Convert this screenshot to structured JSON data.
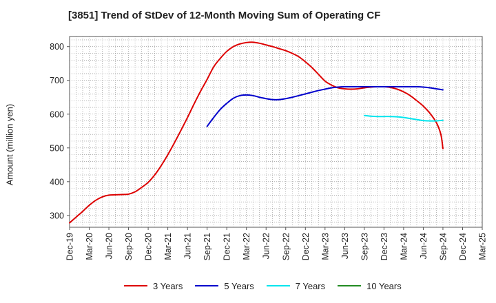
{
  "chart_data": {
    "type": "line",
    "title": "[3851]  Trend of StDev of 12-Month Moving Sum of Operating CF",
    "xlabel": "",
    "ylabel": "Amount (million yen)",
    "ylim": [
      265,
      830
    ],
    "yticks": [
      300,
      400,
      500,
      600,
      700,
      800
    ],
    "x_ticks": [
      "Dec-19",
      "Mar-20",
      "Jun-20",
      "Sep-20",
      "Dec-20",
      "Mar-21",
      "Jun-21",
      "Sep-21",
      "Dec-21",
      "Mar-22",
      "Jun-22",
      "Sep-22",
      "Dec-22",
      "Mar-23",
      "Jun-23",
      "Sep-23",
      "Dec-23",
      "Mar-24",
      "Jun-24",
      "Sep-24",
      "Dec-24",
      "Mar-25"
    ],
    "grid": true,
    "legend_position": "bottom",
    "series": [
      {
        "name": "3 Years",
        "color": "#dd0000",
        "points": [
          [
            "Dec-19",
            278
          ],
          [
            "Jan-20",
            295
          ],
          [
            "Feb-20",
            312
          ],
          [
            "Mar-20",
            330
          ],
          [
            "Apr-20",
            345
          ],
          [
            "May-20",
            355
          ],
          [
            "Jun-20",
            360
          ],
          [
            "Jul-20",
            361
          ],
          [
            "Aug-20",
            362
          ],
          [
            "Sep-20",
            363
          ],
          [
            "Oct-20",
            370
          ],
          [
            "Nov-20",
            383
          ],
          [
            "Dec-20",
            398
          ],
          [
            "Jan-21",
            420
          ],
          [
            "Feb-21",
            448
          ],
          [
            "Mar-21",
            480
          ],
          [
            "Apr-21",
            515
          ],
          [
            "May-21",
            552
          ],
          [
            "Jun-21",
            590
          ],
          [
            "Jul-21",
            630
          ],
          [
            "Aug-21",
            668
          ],
          [
            "Sep-21",
            703
          ],
          [
            "Oct-21",
            740
          ],
          [
            "Nov-21",
            765
          ],
          [
            "Dec-21",
            786
          ],
          [
            "Jan-22",
            800
          ],
          [
            "Feb-22",
            808
          ],
          [
            "Mar-22",
            812
          ],
          [
            "Apr-22",
            813
          ],
          [
            "May-22",
            810
          ],
          [
            "Jun-22",
            805
          ],
          [
            "Jul-22",
            800
          ],
          [
            "Aug-22",
            794
          ],
          [
            "Sep-22",
            788
          ],
          [
            "Oct-22",
            780
          ],
          [
            "Nov-22",
            770
          ],
          [
            "Dec-22",
            755
          ],
          [
            "Jan-23",
            738
          ],
          [
            "Feb-23",
            718
          ],
          [
            "Mar-23",
            698
          ],
          [
            "Apr-23",
            686
          ],
          [
            "May-23",
            678
          ],
          [
            "Jun-23",
            675
          ],
          [
            "Jul-23",
            674
          ],
          [
            "Aug-23",
            675
          ],
          [
            "Sep-23",
            678
          ],
          [
            "Oct-23",
            680
          ],
          [
            "Nov-23",
            681
          ],
          [
            "Dec-23",
            681
          ],
          [
            "Jan-24",
            679
          ],
          [
            "Feb-24",
            674
          ],
          [
            "Mar-24",
            666
          ],
          [
            "Apr-24",
            655
          ],
          [
            "May-24",
            640
          ],
          [
            "Jun-24",
            624
          ],
          [
            "Jul-24",
            603
          ],
          [
            "Aug-24",
            575
          ],
          [
            "Sep-24",
            540
          ],
          [
            "Sep-24",
            498
          ]
        ]
      },
      {
        "name": "5 Years",
        "color": "#0000cc",
        "points": [
          [
            "Sep-21",
            564
          ],
          [
            "Oct-21",
            590
          ],
          [
            "Nov-21",
            614
          ],
          [
            "Dec-21",
            632
          ],
          [
            "Jan-22",
            647
          ],
          [
            "Feb-22",
            655
          ],
          [
            "Mar-22",
            657
          ],
          [
            "Apr-22",
            655
          ],
          [
            "May-22",
            650
          ],
          [
            "Jun-22",
            646
          ],
          [
            "Jul-22",
            643
          ],
          [
            "Aug-22",
            643
          ],
          [
            "Sep-22",
            646
          ],
          [
            "Oct-22",
            650
          ],
          [
            "Nov-22",
            655
          ],
          [
            "Dec-22",
            660
          ],
          [
            "Jan-23",
            665
          ],
          [
            "Feb-23",
            670
          ],
          [
            "Mar-23",
            674
          ],
          [
            "Apr-23",
            678
          ],
          [
            "May-23",
            680
          ],
          [
            "Jun-23",
            681
          ],
          [
            "Jul-23",
            681
          ],
          [
            "Aug-23",
            681
          ],
          [
            "Sep-23",
            681
          ],
          [
            "Oct-23",
            681
          ],
          [
            "Nov-23",
            681
          ],
          [
            "Dec-23",
            681
          ],
          [
            "Jan-24",
            681
          ],
          [
            "Feb-24",
            681
          ],
          [
            "Mar-24",
            681
          ],
          [
            "Apr-24",
            681
          ],
          [
            "May-24",
            681
          ],
          [
            "Jun-24",
            680
          ],
          [
            "Jul-24",
            678
          ],
          [
            "Aug-24",
            675
          ],
          [
            "Sep-24",
            672
          ]
        ]
      },
      {
        "name": "7 Years",
        "color": "#00e5ee",
        "points": [
          [
            "Sep-23",
            596
          ],
          [
            "Oct-23",
            594
          ],
          [
            "Nov-23",
            593
          ],
          [
            "Dec-23",
            593
          ],
          [
            "Jan-24",
            593
          ],
          [
            "Feb-24",
            592
          ],
          [
            "Mar-24",
            590
          ],
          [
            "Apr-24",
            587
          ],
          [
            "May-24",
            584
          ],
          [
            "Jun-24",
            581
          ],
          [
            "Jul-24",
            580
          ],
          [
            "Aug-24",
            580
          ],
          [
            "Sep-24",
            582
          ]
        ]
      },
      {
        "name": "10 Years",
        "color": "#228B22",
        "points": []
      }
    ]
  }
}
